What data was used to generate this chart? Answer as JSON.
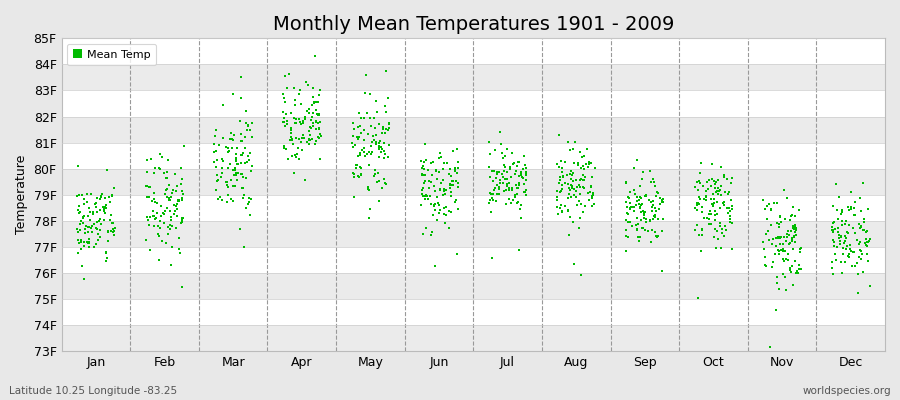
{
  "title": "Monthly Mean Temperatures 1901 - 2009",
  "ylabel": "Temperature",
  "xlabel_bottom": "Latitude 10.25 Longitude -83.25",
  "watermark": "worldspecies.org",
  "legend_label": "Mean Temp",
  "dot_color": "#00BB00",
  "dot_size": 3,
  "bg_color": "#E8E8E8",
  "plot_bg_color": "#F0F0F0",
  "ylim_min": 73,
  "ylim_max": 85,
  "yticks": [
    73,
    74,
    75,
    76,
    77,
    78,
    79,
    80,
    81,
    82,
    83,
    84,
    85
  ],
  "ytick_labels": [
    "73F",
    "74F",
    "75F",
    "76F",
    "77F",
    "78F",
    "79F",
    "80F",
    "81F",
    "82F",
    "83F",
    "84F",
    "85F"
  ],
  "months": [
    "Jan",
    "Feb",
    "Mar",
    "Apr",
    "May",
    "Jun",
    "Jul",
    "Aug",
    "Sep",
    "Oct",
    "Nov",
    "Dec"
  ],
  "month_means": [
    77.9,
    78.6,
    80.2,
    81.6,
    80.7,
    79.3,
    79.6,
    79.4,
    78.5,
    78.6,
    77.2,
    77.5
  ],
  "month_stds": [
    0.8,
    0.9,
    0.9,
    0.8,
    0.9,
    0.8,
    0.7,
    0.7,
    0.7,
    0.7,
    0.9,
    0.8
  ],
  "n_years": 109,
  "seed": 42,
  "title_fontsize": 14,
  "axis_label_fontsize": 9,
  "ylabel_fontsize": 9,
  "legend_fontsize": 8,
  "dpi": 100
}
